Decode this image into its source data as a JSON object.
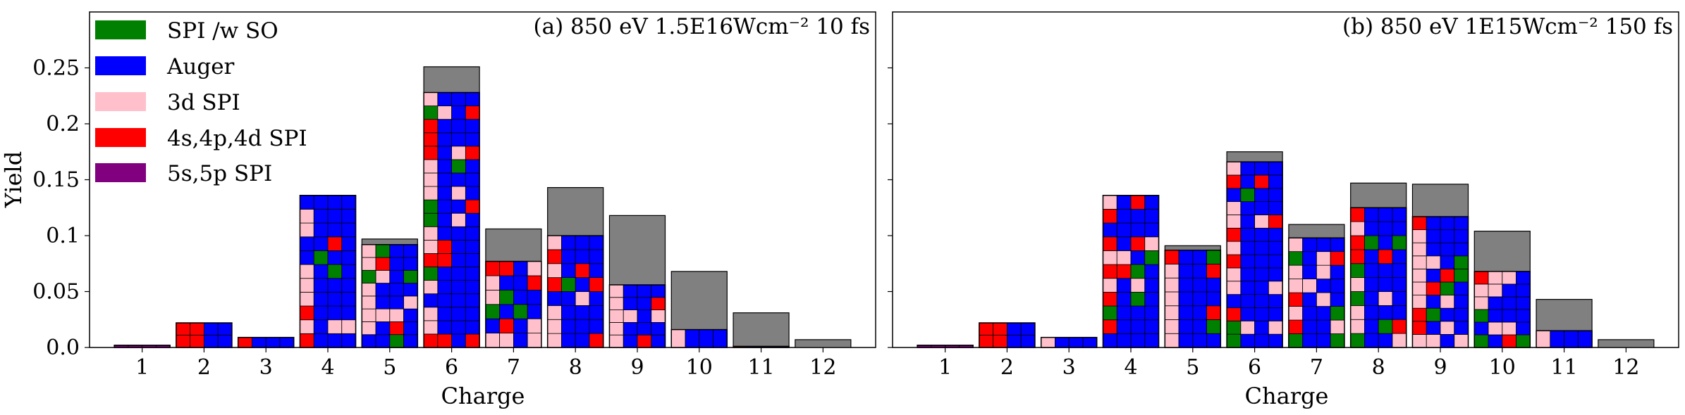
{
  "figure": {
    "ylabel": "Yield",
    "xlabel": "Charge",
    "legend": {
      "placement": "top-left",
      "items": [
        {
          "label": "SPI /w SO",
          "color": "#008000"
        },
        {
          "label": "Auger",
          "color": "#0000ff"
        },
        {
          "label": "3d SPI",
          "color": "#ffc0cb"
        },
        {
          "label": "4s,4p,4d SPI",
          "color": "#ff0000"
        },
        {
          "label": "5s,5p SPI",
          "color": "#800080"
        }
      ]
    },
    "total_bar_color": "#808080",
    "stack_edge_color": "#000000"
  },
  "chart_data": [
    {
      "type": "bar",
      "title": "(a) 850 eV 1.5E16Wcm⁻² 10 fs",
      "xlabel": "Charge",
      "ylabel": "Yield",
      "ylim": [
        0,
        0.3
      ],
      "yticks": [
        "0.0",
        "0.05",
        "0.1",
        "0.15",
        "0.2",
        "0.25"
      ],
      "categories": [
        "1",
        "2",
        "3",
        "4",
        "5",
        "6",
        "7",
        "8",
        "9",
        "10",
        "11",
        "12"
      ],
      "total_yield": [
        0.002,
        0.022,
        0.009,
        0.136,
        0.097,
        0.251,
        0.106,
        0.143,
        0.118,
        0.068,
        0.031,
        0.007
      ],
      "stacked_yield": [
        0.002,
        0.022,
        0.009,
        0.136,
        0.092,
        0.228,
        0.077,
        0.1,
        0.056,
        0.016,
        0.001,
        0.0
      ],
      "legend_placement": "top-left"
    },
    {
      "type": "bar",
      "title": "(b) 850 eV 1E15Wcm⁻² 150 fs",
      "xlabel": "Charge",
      "ylabel": "",
      "ylim": [
        0,
        0.3
      ],
      "yticks": [],
      "categories": [
        "1",
        "2",
        "3",
        "4",
        "5",
        "6",
        "7",
        "8",
        "9",
        "10",
        "11",
        "12"
      ],
      "total_yield": [
        0.002,
        0.022,
        0.009,
        0.136,
        0.091,
        0.175,
        0.11,
        0.147,
        0.146,
        0.104,
        0.043,
        0.007
      ],
      "stacked_yield": [
        0.002,
        0.022,
        0.009,
        0.136,
        0.087,
        0.166,
        0.098,
        0.125,
        0.117,
        0.068,
        0.015,
        0.0
      ]
    }
  ]
}
